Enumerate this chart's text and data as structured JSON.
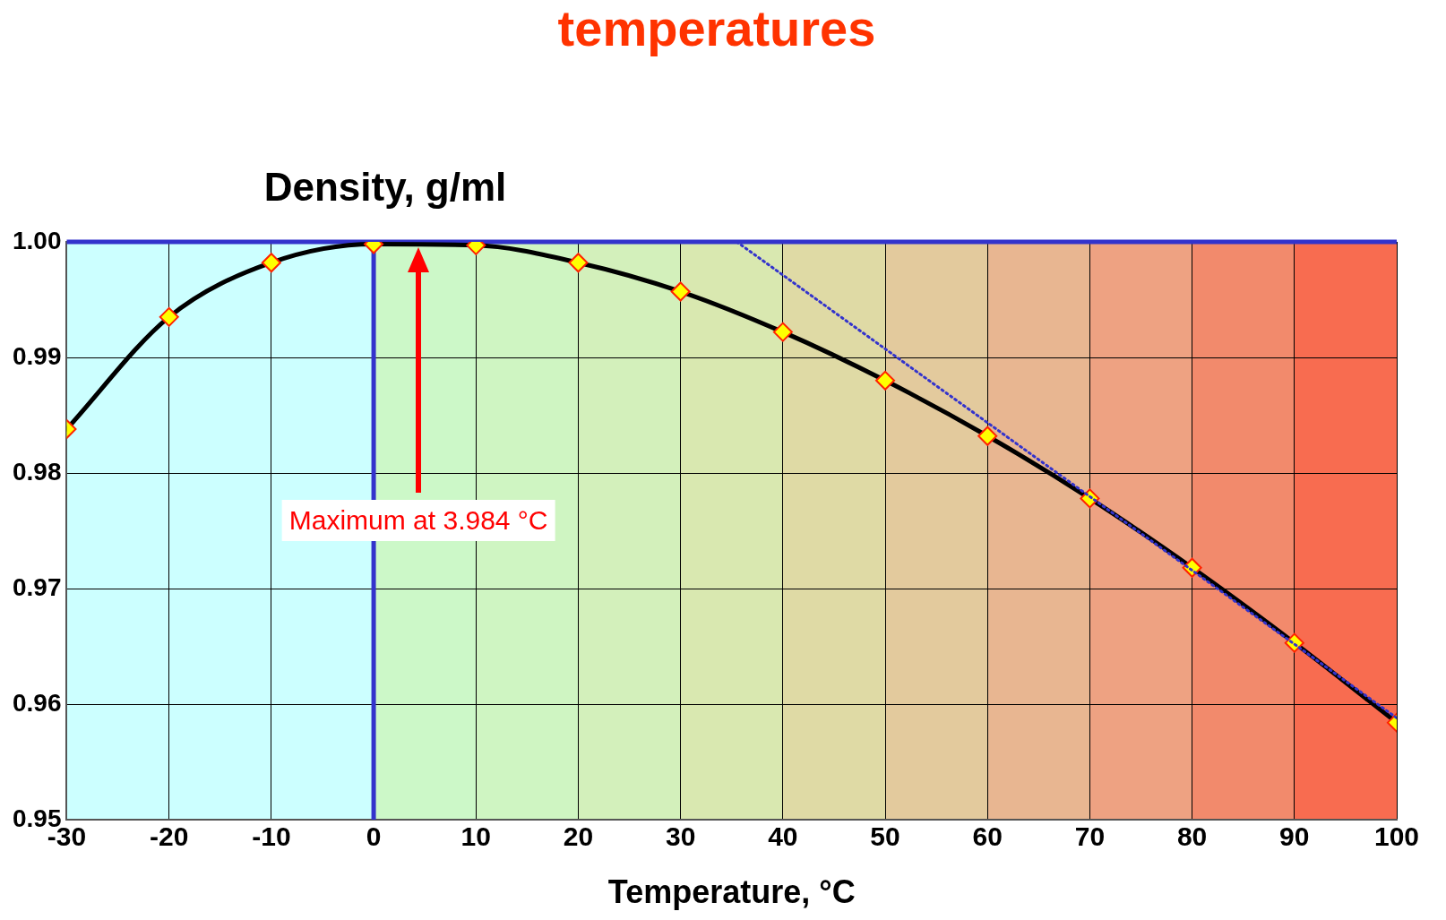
{
  "chart_data": {
    "type": "line",
    "title": "temperatures",
    "ylabel": "Density, g/ml",
    "xlabel": "Temperature, °C",
    "x": [
      -30,
      -20,
      -10,
      0,
      10,
      20,
      30,
      40,
      50,
      60,
      70,
      80,
      90,
      100
    ],
    "series": [
      {
        "name": null,
        "color": "#000000",
        "values": [
          0.9838,
          0.9935,
          0.9982,
          0.9998,
          0.9997,
          0.9982,
          0.9957,
          0.9922,
          0.988,
          0.9832,
          0.9778,
          0.9718,
          0.9653,
          0.9584
        ]
      },
      {
        "type": "line",
        "x": [
          35.5,
          100
        ],
        "color": "#3333cc",
        "line_style": "dotted",
        "marker": "none",
        "values": [
          1.0,
          0.9588
        ]
      }
    ],
    "marker": "diamond",
    "line_style": "solid",
    "xlim": [
      -30,
      100
    ],
    "xticks": [
      -30,
      -20,
      -10,
      0,
      10,
      20,
      30,
      40,
      50,
      60,
      70,
      80,
      90,
      100
    ],
    "ylim": [
      0.95,
      1.0
    ],
    "yticks": [
      {
        "value": 0.95,
        "label": "0.95"
      },
      0.96,
      0.97,
      0.98,
      0.99,
      {
        "value": 1.0,
        "label": "1.00"
      }
    ],
    "grid": true,
    "legend": false,
    "ref_lines": [
      {
        "axis": "y",
        "value": 1.0,
        "color": "#3333cc"
      },
      {
        "axis": "x",
        "value": 0,
        "color": "#3333cc"
      }
    ],
    "bands": [
      {
        "axis": "x",
        "from": -30,
        "to": 0,
        "color": "#ccffff"
      },
      {
        "axis": "x",
        "from": 0,
        "to": 10,
        "color": "#ccf8c8"
      },
      {
        "axis": "x",
        "from": 10,
        "to": 20,
        "color": "#cff5c2"
      },
      {
        "axis": "x",
        "from": 20,
        "to": 30,
        "color": "#d3f0bb"
      },
      {
        "axis": "x",
        "from": 30,
        "to": 40,
        "color": "#d9e8b0"
      },
      {
        "axis": "x",
        "from": 40,
        "to": 50,
        "color": "#dfdaa5"
      },
      {
        "axis": "x",
        "from": 50,
        "to": 60,
        "color": "#e3ca9d"
      },
      {
        "axis": "x",
        "from": 60,
        "to": 70,
        "color": "#e8b691"
      },
      {
        "axis": "x",
        "from": 70,
        "to": 80,
        "color": "#eea282"
      },
      {
        "axis": "x",
        "from": 80,
        "to": 90,
        "color": "#f28a6c"
      },
      {
        "axis": "x",
        "from": 90,
        "to": 100,
        "color": "#f86c50"
      }
    ],
    "annotations": [
      "Maximum at 3.984 °C"
    ]
  }
}
